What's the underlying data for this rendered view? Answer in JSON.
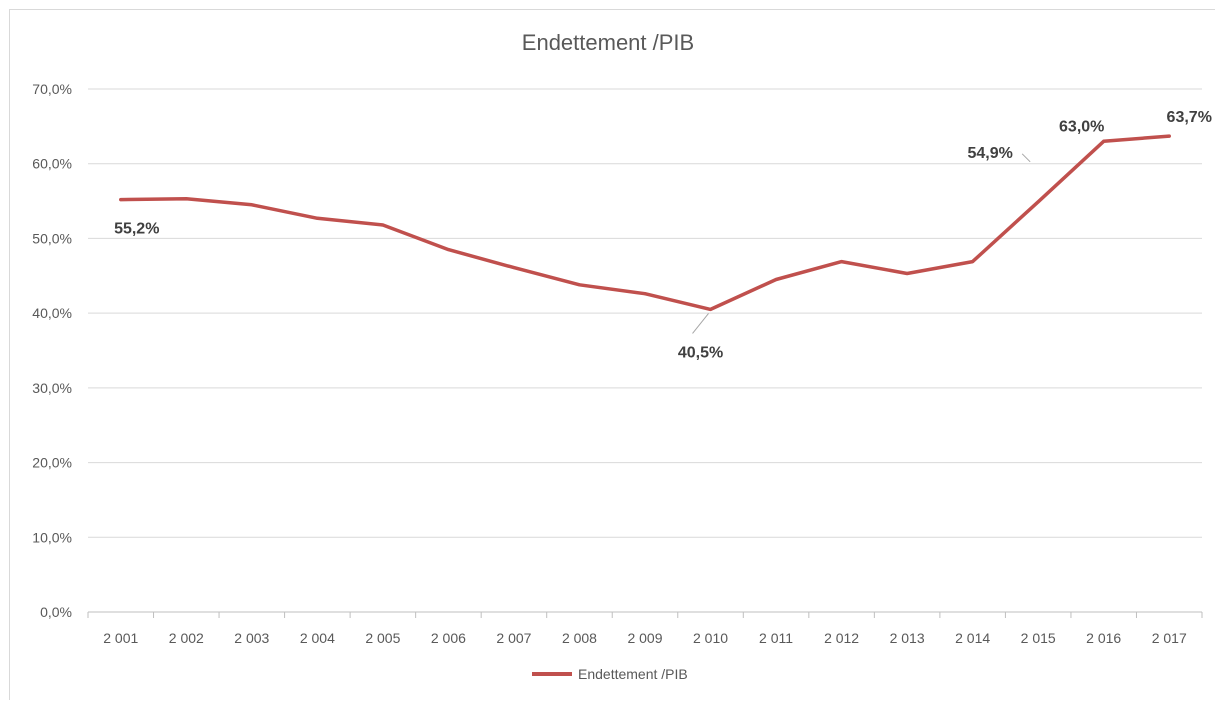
{
  "chart_data": {
    "type": "line",
    "title": "Endettement /PIB",
    "xlabel": "",
    "ylabel": "",
    "categories": [
      "2 001",
      "2 002",
      "2 003",
      "2 004",
      "2 005",
      "2 006",
      "2 007",
      "2 008",
      "2 009",
      "2 010",
      "2 011",
      "2 012",
      "2 013",
      "2 014",
      "2 015",
      "2 016",
      "2 017"
    ],
    "series": [
      {
        "name": "Endettement /PIB",
        "color": "#c0504d",
        "values": [
          55.2,
          55.3,
          54.5,
          52.7,
          51.8,
          48.5,
          46.1,
          43.8,
          42.6,
          40.5,
          44.5,
          46.9,
          45.3,
          46.9,
          54.9,
          63.0,
          63.7
        ]
      }
    ],
    "ylim": [
      0,
      70
    ],
    "yticks": [
      "0,0%",
      "10,0%",
      "20,0%",
      "30,0%",
      "40,0%",
      "50,0%",
      "60,0%",
      "70,0%"
    ],
    "data_labels": [
      {
        "index": 0,
        "text": "55,2%"
      },
      {
        "index": 9,
        "text": "40,5%"
      },
      {
        "index": 14,
        "text": "54,9%"
      },
      {
        "index": 15,
        "text": "63,0%"
      },
      {
        "index": 16,
        "text": "63,7%"
      }
    ],
    "grid": true,
    "legend_position": "bottom"
  }
}
